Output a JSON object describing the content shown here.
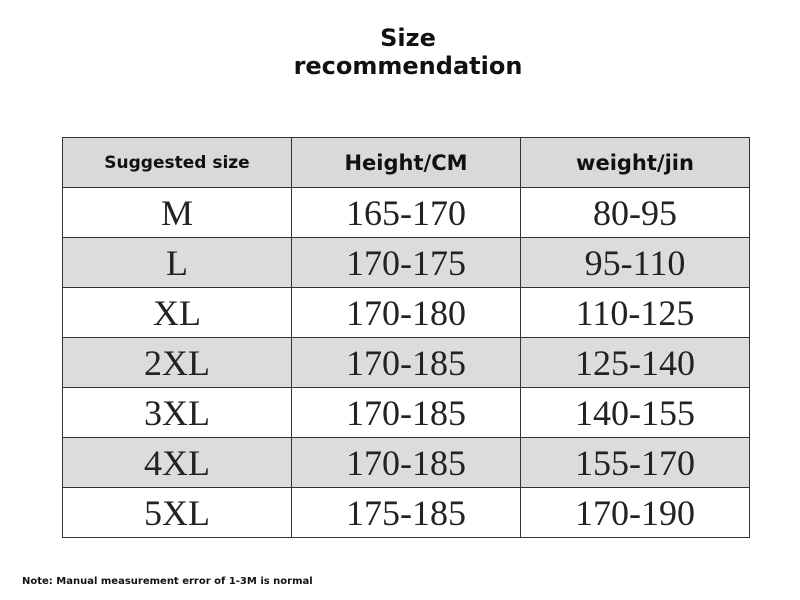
{
  "header": {
    "title": "Size recommendation"
  },
  "table": {
    "columns": [
      "Suggested size",
      "Height/CM",
      "weight/jin"
    ],
    "rows": [
      [
        "M",
        "165-170",
        "80-95"
      ],
      [
        "L",
        "170-175",
        "95-110"
      ],
      [
        "XL",
        "170-180",
        "110-125"
      ],
      [
        "2XL",
        "170-185",
        "125-140"
      ],
      [
        "3XL",
        "170-185",
        "140-155"
      ],
      [
        "4XL",
        "170-185",
        "155-170"
      ],
      [
        "5XL",
        "175-185",
        "170-190"
      ]
    ]
  },
  "footer": {
    "note": "Note: Manual measurement error of 1-3M is normal"
  }
}
